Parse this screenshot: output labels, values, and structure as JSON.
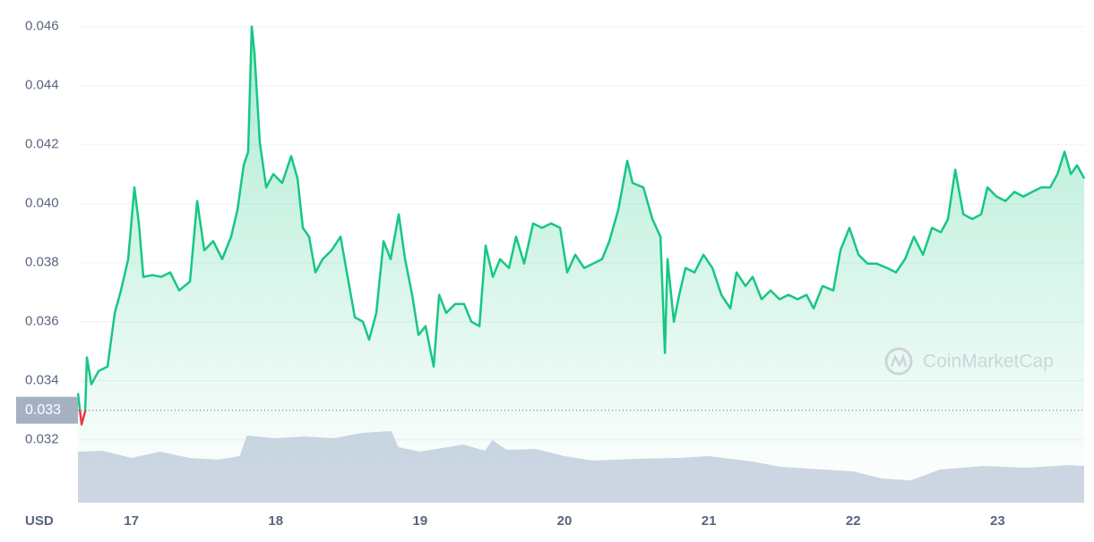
{
  "chart_data": {
    "type": "line",
    "x": [
      16.63,
      16.655,
      16.68,
      16.692,
      16.723,
      16.773,
      16.835,
      16.885,
      16.928,
      16.978,
      17.021,
      17.052,
      17.083,
      17.145,
      17.207,
      17.269,
      17.331,
      17.406,
      17.456,
      17.505,
      17.567,
      17.629,
      17.691,
      17.735,
      17.778,
      17.809,
      17.834,
      17.853,
      17.89,
      17.934,
      17.983,
      18.045,
      18.107,
      18.151,
      18.188,
      18.231,
      18.275,
      18.325,
      18.387,
      18.449,
      18.498,
      18.548,
      18.604,
      18.647,
      18.697,
      18.747,
      18.796,
      18.852,
      18.896,
      18.945,
      18.989,
      19.038,
      19.094,
      19.132,
      19.181,
      19.243,
      19.305,
      19.355,
      19.411,
      19.454,
      19.504,
      19.554,
      19.616,
      19.665,
      19.721,
      19.783,
      19.845,
      19.907,
      19.97,
      20.019,
      20.075,
      20.137,
      20.199,
      20.261,
      20.311,
      20.373,
      20.435,
      20.472,
      20.547,
      20.609,
      20.665,
      20.696,
      20.714,
      20.758,
      20.795,
      20.839,
      20.901,
      20.963,
      21.025,
      21.087,
      21.149,
      21.192,
      21.254,
      21.304,
      21.366,
      21.428,
      21.49,
      21.552,
      21.615,
      21.677,
      21.726,
      21.788,
      21.863,
      21.912,
      21.974,
      22.037,
      22.099,
      22.161,
      22.235,
      22.297,
      22.359,
      22.421,
      22.484,
      22.546,
      22.608,
      22.657,
      22.707,
      22.763,
      22.825,
      22.887,
      22.93,
      22.993,
      23.055,
      23.117,
      23.179,
      23.241,
      23.303,
      23.365,
      23.415,
      23.464,
      23.508,
      23.551,
      23.601
    ],
    "series": [
      {
        "color": "#16c784",
        "below_color": "#ea3943",
        "values": [
          0.03358,
          0.03252,
          0.03297,
          0.03479,
          0.03388,
          0.03433,
          0.03448,
          0.0363,
          0.03706,
          0.03812,
          0.04055,
          0.03933,
          0.03752,
          0.03758,
          0.03752,
          0.03767,
          0.03706,
          0.03736,
          0.04009,
          0.03842,
          0.03873,
          0.03812,
          0.03888,
          0.03979,
          0.0413,
          0.04176,
          0.046,
          0.04509,
          0.04206,
          0.04055,
          0.041,
          0.0407,
          0.04161,
          0.04085,
          0.03918,
          0.03888,
          0.03767,
          0.03812,
          0.03842,
          0.03888,
          0.03752,
          0.03615,
          0.036,
          0.03539,
          0.0363,
          0.03873,
          0.03812,
          0.03964,
          0.03812,
          0.03691,
          0.03555,
          0.03585,
          0.03448,
          0.03691,
          0.0363,
          0.0366,
          0.0366,
          0.036,
          0.03585,
          0.03858,
          0.03752,
          0.03812,
          0.03782,
          0.03888,
          0.03797,
          0.03933,
          0.03918,
          0.03933,
          0.03918,
          0.03767,
          0.03827,
          0.03782,
          0.03797,
          0.03812,
          0.03873,
          0.03979,
          0.04145,
          0.0407,
          0.04055,
          0.03948,
          0.03888,
          0.03494,
          0.03812,
          0.036,
          0.03691,
          0.03782,
          0.03767,
          0.03827,
          0.03782,
          0.03691,
          0.03645,
          0.03767,
          0.03721,
          0.03752,
          0.03676,
          0.03706,
          0.03676,
          0.03691,
          0.03676,
          0.03691,
          0.03645,
          0.03721,
          0.03706,
          0.03842,
          0.03918,
          0.03827,
          0.03797,
          0.03797,
          0.03782,
          0.03767,
          0.03812,
          0.03888,
          0.03827,
          0.03918,
          0.03903,
          0.03948,
          0.04115,
          0.03964,
          0.03948,
          0.03964,
          0.04055,
          0.04024,
          0.04009,
          0.0404,
          0.04024,
          0.0404,
          0.04055,
          0.04055,
          0.041,
          0.04176,
          0.041,
          0.0413,
          0.04085
        ]
      }
    ],
    "baseline": 0.033,
    "volume": {
      "color": "#cfd6e4",
      "x": [
        16.63,
        16.8,
        17.0,
        17.2,
        17.4,
        17.6,
        17.75,
        17.8,
        18.0,
        18.2,
        18.4,
        18.6,
        18.8,
        18.85,
        19.0,
        19.3,
        19.45,
        19.5,
        19.6,
        19.8,
        20.0,
        20.2,
        20.5,
        20.8,
        21.0,
        21.3,
        21.5,
        21.8,
        22.0,
        22.2,
        22.4,
        22.6,
        22.9,
        23.2,
        23.5,
        23.6
      ],
      "values": [
        57,
        58,
        50,
        57,
        50,
        48,
        52,
        75,
        72,
        74,
        72,
        78,
        80,
        62,
        57,
        65,
        58,
        70,
        59,
        60,
        52,
        47,
        49,
        50,
        52,
        46,
        40,
        37,
        35,
        27,
        25,
        37,
        41,
        39,
        42,
        41
      ]
    },
    "vlim": [
      0,
      100
    ],
    "xlim": [
      16.63,
      23.6
    ],
    "xticks": [
      17,
      18,
      19,
      20,
      21,
      22,
      23
    ],
    "ylim": [
      0.0299,
      0.0469
    ],
    "yticks": [
      0.032,
      0.034,
      0.036,
      0.038,
      {
        "value": 0.04,
        "label": "0.040"
      },
      0.042,
      0.044,
      0.046
    ],
    "grid": true,
    "currency_label": "USD",
    "watermark": "CoinMarketCap"
  }
}
